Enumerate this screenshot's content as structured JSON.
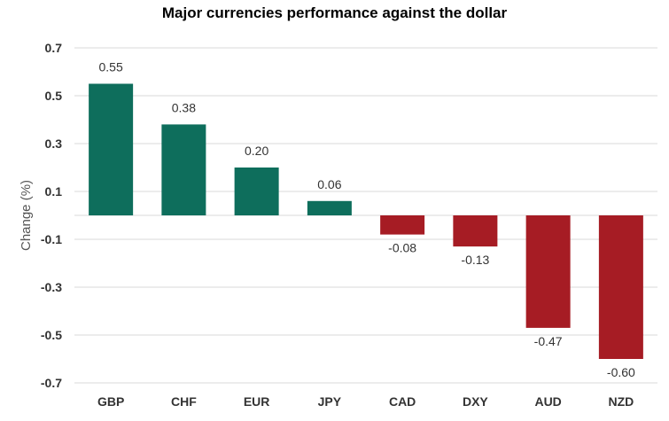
{
  "chart_data": {
    "type": "bar",
    "title": "Major currencies performance against the dollar",
    "xlabel": "",
    "ylabel": "Change (%)",
    "categories": [
      "GBP",
      "CHF",
      "EUR",
      "JPY",
      "CAD",
      "DXY",
      "AUD",
      "NZD"
    ],
    "values": [
      0.55,
      0.38,
      0.2,
      0.06,
      -0.08,
      -0.13,
      -0.47,
      -0.6
    ],
    "data_labels": [
      "0.55",
      "0.38",
      "0.20",
      "0.06",
      "-0.08",
      "-0.13",
      "-0.47",
      "-0.60"
    ],
    "ylim": [
      -0.7,
      0.7
    ],
    "yticks": [
      0.7,
      0.5,
      0.3,
      0.1,
      -0.1,
      -0.3,
      -0.5,
      -0.7
    ],
    "ytick_labels": [
      "0.7",
      "0.5",
      "0.3",
      "0.1",
      "-0.1",
      "-0.3",
      "-0.5",
      "-0.7"
    ],
    "grid": true,
    "colors": {
      "positive": "#0e6e5c",
      "negative": "#a61c24",
      "grid": "#d9d9d9",
      "text": "#333333"
    }
  }
}
